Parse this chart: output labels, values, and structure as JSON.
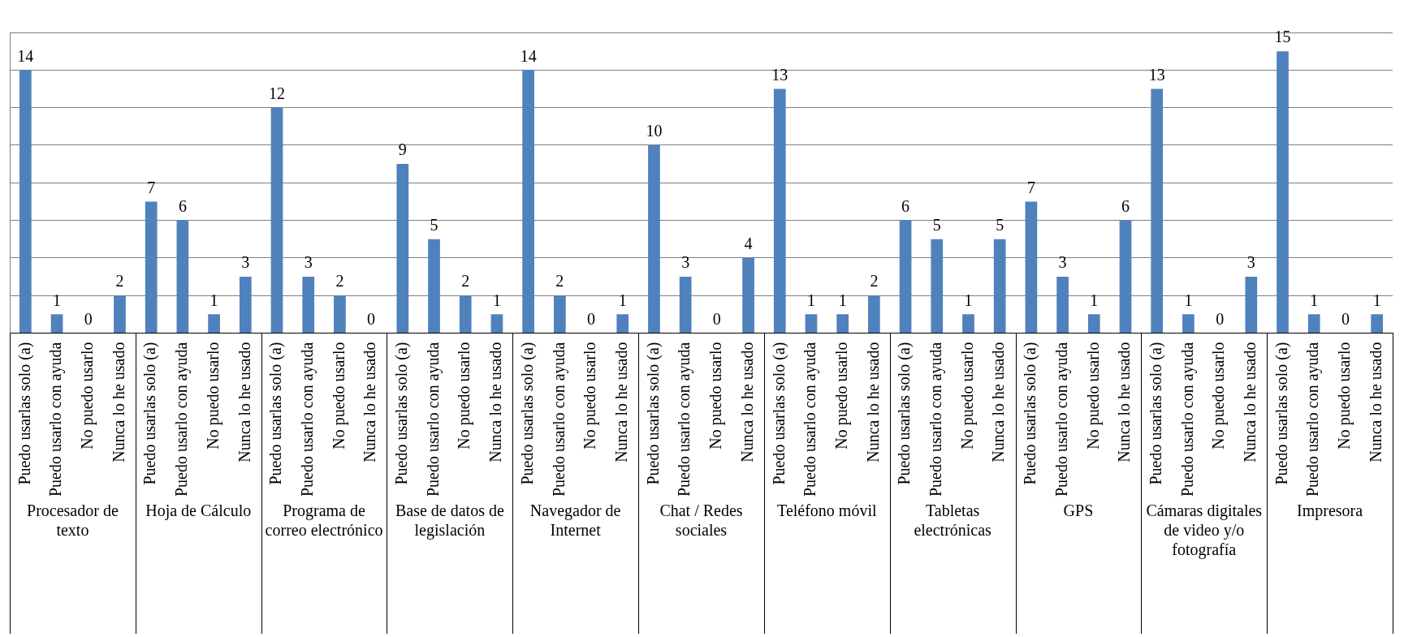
{
  "chart_data": {
    "type": "bar",
    "categories": [
      "Puedo usarlas solo (a)",
      "Puedo usarlo con ayuda",
      "No puedo usarlo",
      "Nunca lo he usado",
      "Puedo usarlas solo (a)",
      "Puedo usarlo con ayuda",
      "No puedo usarlo",
      "Nunca lo he usado",
      "Puedo usarlas solo (a)",
      "Puedo usarlo con ayuda",
      "No puedo usarlo",
      "Nunca lo he usado",
      "Puedo usarlas solo (a)",
      "Puedo usarlo con ayuda",
      "No puedo usarlo",
      "Nunca lo he usado",
      "Puedo usarlas solo (a)",
      "Puedo usarlo con ayuda",
      "No puedo usarlo",
      "Nunca lo he usado",
      "Puedo usarlas solo (a)",
      "Puedo usarlo con ayuda",
      "No puedo usarlo",
      "Nunca lo he usado",
      "Puedo usarlas solo (a)",
      "Puedo usarlo con ayuda",
      "No puedo usarlo",
      "Nunca lo he usado",
      "Puedo usarlas solo (a)",
      "Puedo usarlo con ayuda",
      "No puedo usarlo",
      "Nunca lo he usado",
      "Puedo usarlas solo (a)",
      "Puedo usarlo con ayuda",
      "No puedo usarlo",
      "Nunca lo he usado",
      "Puedo usarlas solo (a)",
      "Puedo usarlo con ayuda",
      "No puedo usarlo",
      "Nunca lo he usado",
      "Puedo usarlas solo (a)",
      "Puedo usarlo con ayuda",
      "No puedo usarlo",
      "Nunca lo he usado"
    ],
    "values": [
      14,
      1,
      0,
      2,
      7,
      6,
      1,
      3,
      12,
      3,
      2,
      0,
      9,
      5,
      2,
      1,
      14,
      2,
      0,
      1,
      10,
      3,
      0,
      4,
      13,
      1,
      1,
      2,
      6,
      5,
      1,
      5,
      7,
      3,
      1,
      6,
      13,
      1,
      0,
      3,
      15,
      1,
      0,
      1
    ],
    "color": "#4f81bd",
    "grid": "y",
    "tick_labels": "x",
    "data_labels": true,
    "annotations": [
      "Procesador de texto",
      "Hoja de Cálculo",
      "Programa de correo electrónico",
      "Base de datos de legislación",
      "Navegador de Internet",
      "Chat / Redes sociales",
      "Teléfono móvil",
      "Tabletas electrónicas",
      "GPS",
      "Cámaras digitales de video y/o fotografía",
      "Impresora"
    ]
  }
}
